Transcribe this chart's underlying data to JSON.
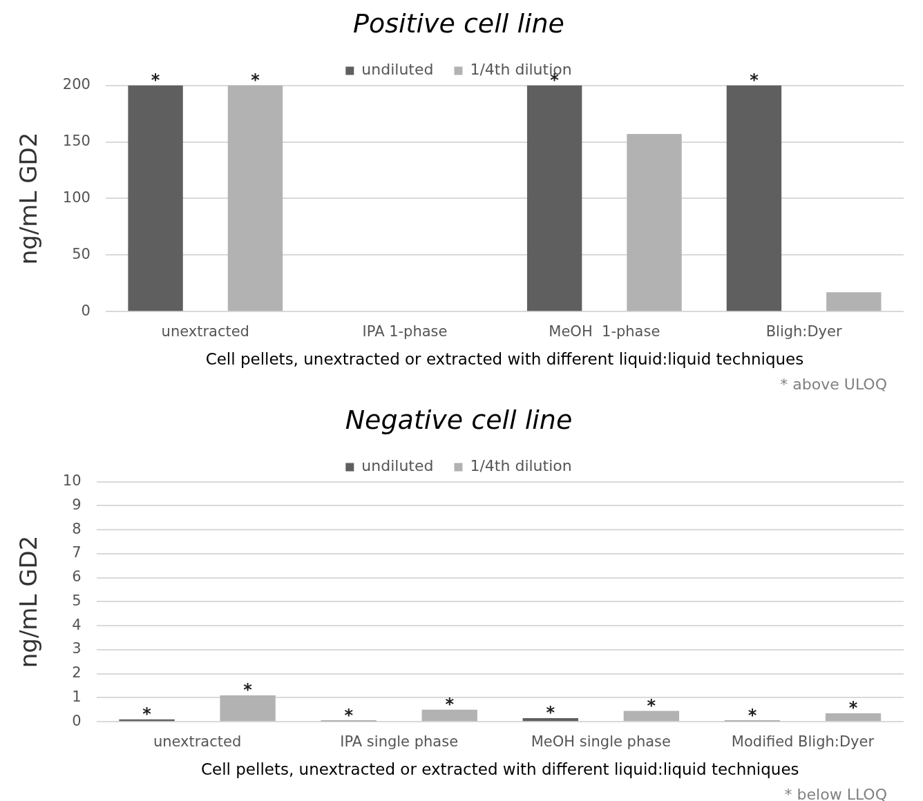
{
  "chart_data": [
    {
      "type": "bar",
      "title": "Positive cell line",
      "xlabel": "Cell pellets, unextracted or extracted with different liquid:liquid techniques",
      "ylabel": "ng/mL GD2",
      "categories": [
        "unextracted",
        "IPA 1-phase",
        "MeOH  1-phase",
        "Bligh:Dyer"
      ],
      "series": [
        {
          "name": "undiluted",
          "color": "#5f5f5f",
          "values": [
            200,
            null,
            200,
            200
          ],
          "value_labels": [
            "*",
            null,
            "*",
            "*"
          ]
        },
        {
          "name": "1/4th dilution",
          "color": "#b2b2b2",
          "values": [
            200,
            null,
            157,
            17
          ],
          "value_labels": [
            "*",
            null,
            null,
            null
          ]
        }
      ],
      "ylim": [
        0,
        200
      ],
      "yticks": [
        0,
        50,
        100,
        150,
        200
      ],
      "grid": "y",
      "legend": "top",
      "annotations": [
        "* above ULOQ"
      ]
    },
    {
      "type": "bar",
      "title": "Negative cell line",
      "xlabel": "Cell pellets, unextracted or extracted with different liquid:liquid techniques",
      "ylabel": "ng/mL GD2",
      "categories": [
        "unextracted",
        "IPA single phase",
        "MeOH single phase",
        "Modified Bligh:Dyer"
      ],
      "series": [
        {
          "name": "undiluted",
          "color": "#5f5f5f",
          "values": [
            0.1,
            0.05,
            0.15,
            0.05
          ],
          "value_labels": [
            "*",
            "*",
            "*",
            "*"
          ]
        },
        {
          "name": "1/4th dilution",
          "color": "#b2b2b2",
          "values": [
            1.1,
            0.5,
            0.45,
            0.35
          ],
          "value_labels": [
            "*",
            "*",
            "*",
            "*"
          ]
        }
      ],
      "ylim": [
        0,
        10
      ],
      "yticks": [
        0,
        1,
        2,
        3,
        4,
        5,
        6,
        7,
        8,
        9,
        10
      ],
      "grid": "y",
      "legend": "top",
      "annotations": [
        "* below LLOQ"
      ]
    }
  ]
}
